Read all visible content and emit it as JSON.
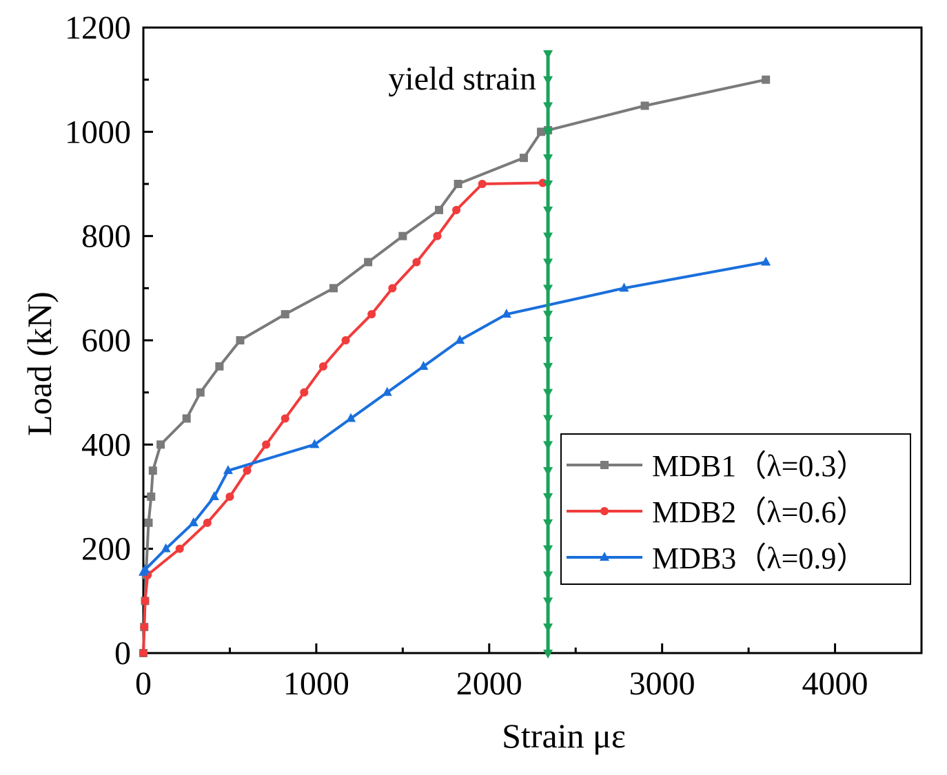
{
  "chart_data": {
    "type": "line",
    "title": "",
    "xlabel": "Strain  με",
    "ylabel": "Load (kN)",
    "xlim": [
      0,
      4500
    ],
    "ylim": [
      0,
      1200
    ],
    "x_ticks": [
      0,
      1000,
      2000,
      3000,
      4000
    ],
    "y_ticks": [
      0,
      200,
      400,
      600,
      800,
      1000,
      1200
    ],
    "x_minor_step": 500,
    "y_minor_step": 100,
    "grid": false,
    "legend_position": "bottom-right",
    "series": [
      {
        "name": "MDB1（λ=0.3）",
        "color": "#7a7a7a",
        "marker": "square",
        "x": [
          0,
          5,
          10,
          15,
          30,
          45,
          55,
          100,
          250,
          330,
          440,
          560,
          820,
          1100,
          1300,
          1500,
          1710,
          1820,
          2200,
          2300,
          2340,
          2900,
          3600
        ],
        "y": [
          0,
          50,
          100,
          150,
          250,
          300,
          350,
          400,
          450,
          500,
          550,
          600,
          650,
          700,
          750,
          800,
          850,
          900,
          950,
          1000,
          1003,
          1050,
          1100
        ]
      },
      {
        "name": "MDB2（λ=0.6）",
        "color": "#f03c3c",
        "marker": "circle",
        "x": [
          0,
          5,
          10,
          25,
          210,
          370,
          500,
          600,
          710,
          820,
          930,
          1040,
          1170,
          1320,
          1440,
          1580,
          1700,
          1810,
          1960,
          2310
        ],
        "y": [
          0,
          50,
          100,
          150,
          200,
          250,
          300,
          350,
          400,
          450,
          500,
          550,
          600,
          650,
          700,
          750,
          800,
          850,
          900,
          902
        ]
      },
      {
        "name": "MDB3（λ=0.9）",
        "color": "#1a6fdc",
        "marker": "triangle",
        "x": [
          0,
          10,
          130,
          290,
          410,
          490,
          990,
          1200,
          1410,
          1620,
          1830,
          2100,
          2780,
          3600
        ],
        "y": [
          155,
          160,
          200,
          250,
          300,
          350,
          400,
          450,
          500,
          550,
          600,
          650,
          700,
          750
        ]
      },
      {
        "name": "yield strain",
        "color": "#1aa35a",
        "marker": "triangle-down",
        "x": [
          2340,
          2340,
          2340,
          2340,
          2340,
          2340,
          2340,
          2340,
          2340,
          2340,
          2340,
          2340,
          2340,
          2340,
          2340,
          2340,
          2340,
          2340,
          2340,
          2340,
          2340,
          2340,
          2340,
          2340
        ],
        "y": [
          0,
          50,
          100,
          150,
          200,
          250,
          300,
          350,
          400,
          450,
          500,
          550,
          600,
          650,
          700,
          750,
          800,
          850,
          900,
          950,
          1000,
          1050,
          1100,
          1150
        ]
      }
    ],
    "annotations": [
      {
        "text": "yield strain",
        "x": 2340,
        "y": 1150
      }
    ]
  }
}
